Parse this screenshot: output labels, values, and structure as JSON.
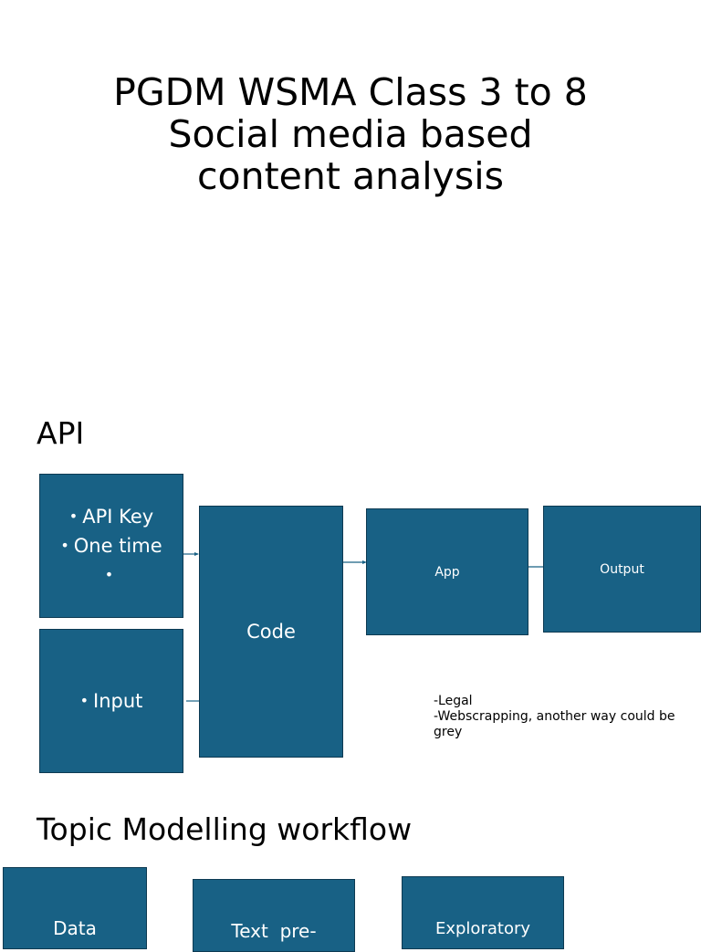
{
  "title": {
    "lines": [
      "PGDM WSMA Class 3 to 8",
      "Social media based",
      "content analysis"
    ]
  },
  "api_section": {
    "heading": "API",
    "key_box": {
      "bullets": [
        "API Key",
        "One time",
        ""
      ]
    },
    "input_box": {
      "bullets": [
        "Input"
      ]
    },
    "code_box": {
      "label": "Code"
    },
    "app_box": {
      "label": "App"
    },
    "output_box": {
      "label": "Output"
    },
    "notes": [
      "-Legal",
      "-Webscrapping, another way could be grey"
    ]
  },
  "topic_section": {
    "heading": "Topic Modelling workflow",
    "boxes": [
      {
        "label": "Data"
      },
      {
        "label": "Text  pre-"
      },
      {
        "label": "Exploratory"
      }
    ]
  },
  "colors": {
    "box_fill": "#186185",
    "box_border": "#0d3a52",
    "connector": "#186185",
    "box_text": "#ffffff"
  }
}
